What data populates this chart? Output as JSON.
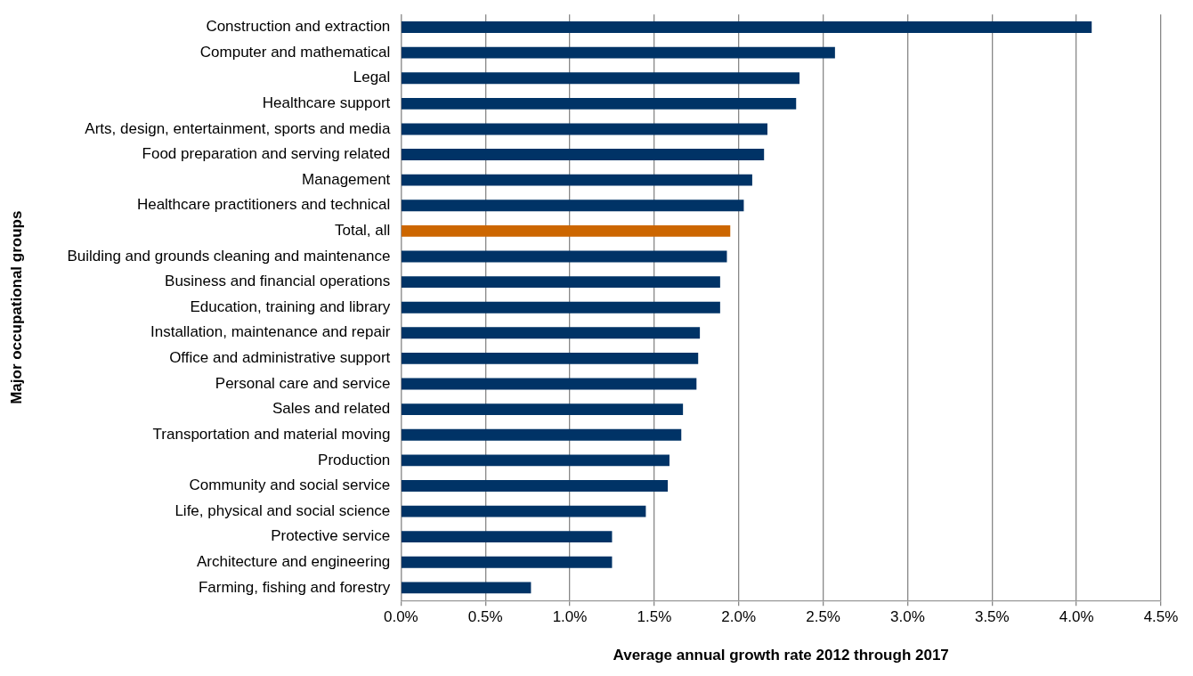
{
  "chart_data": {
    "type": "bar",
    "orientation": "horizontal",
    "xlabel": "Average annual growth rate 2012 through 2017",
    "ylabel": "Major occupational groups",
    "categories": [
      "Construction and extraction",
      "Computer and mathematical",
      "Legal",
      "Healthcare support",
      "Arts, design, entertainment, sports and media",
      "Food preparation and serving related",
      "Management",
      "Healthcare practitioners and technical",
      "Total, all",
      "Building and grounds cleaning and maintenance",
      "Business and financial operations",
      "Education, training and library",
      "Installation, maintenance and repair",
      "Office and administrative support",
      "Personal care and service",
      "Sales and related",
      "Transportation and material moving",
      "Production",
      "Community and social service",
      "Life, physical and social science",
      "Protective service",
      "Architecture and engineering",
      "Farming, fishing and forestry"
    ],
    "values": [
      4.09,
      2.57,
      2.36,
      2.34,
      2.17,
      2.15,
      2.08,
      2.03,
      1.95,
      1.93,
      1.89,
      1.89,
      1.77,
      1.76,
      1.75,
      1.67,
      1.66,
      1.59,
      1.58,
      1.45,
      1.25,
      1.25,
      0.77
    ],
    "colors": [
      "#003366",
      "#003366",
      "#003366",
      "#003366",
      "#003366",
      "#003366",
      "#003366",
      "#003366",
      "#cc6600",
      "#003366",
      "#003366",
      "#003366",
      "#003366",
      "#003366",
      "#003366",
      "#003366",
      "#003366",
      "#003366",
      "#003366",
      "#003366",
      "#003366",
      "#003366",
      "#003366"
    ],
    "xlim": [
      0,
      4.5
    ],
    "xticks": [
      {
        "value": 0,
        "label": "0.0%"
      },
      {
        "value": 0.5,
        "label": "0.5%"
      },
      {
        "value": 1,
        "label": "1.0%"
      },
      {
        "value": 1.5,
        "label": "1.5%"
      },
      {
        "value": 2,
        "label": "2.0%"
      },
      {
        "value": 2.5,
        "label": "2.5%"
      },
      {
        "value": 3,
        "label": "3.0%"
      },
      {
        "value": 3.5,
        "label": "3.5%"
      },
      {
        "value": 4,
        "label": "4.0%"
      },
      {
        "value": 4.5,
        "label": "4.5%"
      }
    ],
    "grid": "x",
    "legend": false
  }
}
